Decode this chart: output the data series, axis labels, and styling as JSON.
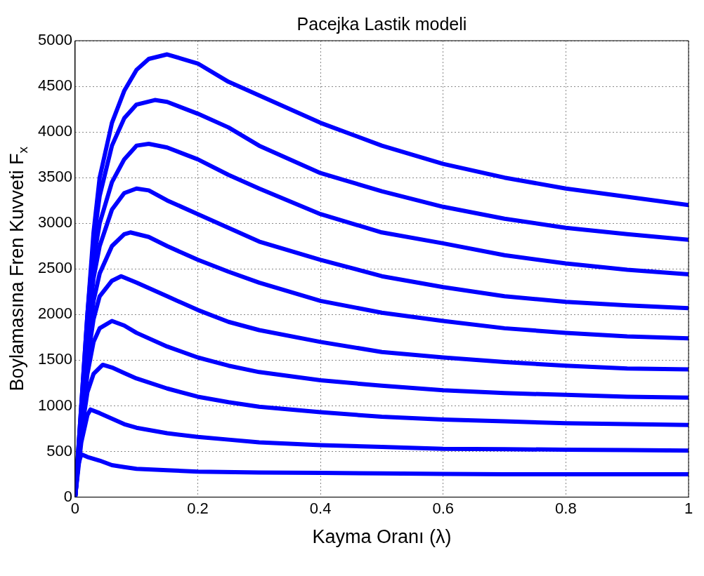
{
  "chart_data": {
    "type": "line",
    "title": "Pacejka Lastik modeli",
    "xlabel": "Kayma Oranı (λ)",
    "ylabel": "Boylamasına Fren Kuvveti F$_{x}$",
    "xlim": [
      0,
      1
    ],
    "ylim": [
      0,
      5000
    ],
    "xticks": [
      0,
      0.2,
      0.4,
      0.6,
      0.8,
      1
    ],
    "yticks": [
      0,
      500,
      1000,
      1500,
      2000,
      2500,
      3000,
      3500,
      4000,
      4500,
      5000
    ],
    "grid": true,
    "legend": false,
    "marker": "none",
    "line_style": "solid",
    "series": [
      {
        "color": "#0000ff",
        "x": [
          0,
          0.005,
          0.01,
          0.02,
          0.04,
          0.06,
          0.08,
          0.1,
          0.15,
          0.2,
          0.3,
          0.4,
          0.5,
          0.6,
          0.7,
          0.8,
          1
        ],
        "values": [
          0,
          350,
          470,
          440,
          400,
          350,
          330,
          310,
          295,
          280,
          270,
          265,
          260,
          255,
          250,
          250,
          250
        ]
      },
      {
        "color": "#0000ff",
        "x": [
          0,
          0.01,
          0.02,
          0.025,
          0.04,
          0.06,
          0.08,
          0.1,
          0.15,
          0.2,
          0.25,
          0.3,
          0.4,
          0.5,
          0.6,
          0.7,
          0.8,
          0.9,
          1
        ],
        "values": [
          0,
          600,
          900,
          960,
          920,
          860,
          800,
          760,
          700,
          660,
          630,
          600,
          570,
          550,
          530,
          525,
          520,
          515,
          510
        ]
      },
      {
        "color": "#0000ff",
        "x": [
          0,
          0.01,
          0.02,
          0.03,
          0.045,
          0.06,
          0.08,
          0.1,
          0.15,
          0.2,
          0.25,
          0.3,
          0.4,
          0.5,
          0.6,
          0.7,
          0.8,
          0.9,
          1
        ],
        "values": [
          0,
          700,
          1150,
          1350,
          1450,
          1420,
          1360,
          1300,
          1190,
          1100,
          1040,
          990,
          930,
          880,
          850,
          830,
          810,
          800,
          790
        ]
      },
      {
        "color": "#0000ff",
        "x": [
          0,
          0.01,
          0.02,
          0.03,
          0.04,
          0.06,
          0.08,
          0.1,
          0.15,
          0.2,
          0.25,
          0.3,
          0.4,
          0.5,
          0.6,
          0.7,
          0.8,
          0.9,
          1
        ],
        "values": [
          0,
          750,
          1350,
          1700,
          1850,
          1930,
          1880,
          1800,
          1650,
          1530,
          1440,
          1370,
          1280,
          1220,
          1170,
          1140,
          1120,
          1100,
          1090
        ]
      },
      {
        "color": "#0000ff",
        "x": [
          0,
          0.01,
          0.02,
          0.03,
          0.04,
          0.06,
          0.075,
          0.1,
          0.15,
          0.2,
          0.25,
          0.3,
          0.4,
          0.5,
          0.6,
          0.7,
          0.8,
          0.9,
          1
        ],
        "values": [
          0,
          800,
          1500,
          1950,
          2200,
          2370,
          2420,
          2350,
          2200,
          2050,
          1920,
          1830,
          1700,
          1590,
          1530,
          1480,
          1440,
          1410,
          1400
        ]
      },
      {
        "color": "#0000ff",
        "x": [
          0,
          0.01,
          0.02,
          0.03,
          0.04,
          0.06,
          0.08,
          0.09,
          0.12,
          0.15,
          0.2,
          0.25,
          0.3,
          0.4,
          0.5,
          0.6,
          0.7,
          0.8,
          0.9,
          1
        ],
        "values": [
          0,
          850,
          1650,
          2150,
          2450,
          2750,
          2880,
          2900,
          2850,
          2750,
          2600,
          2470,
          2350,
          2150,
          2020,
          1930,
          1850,
          1800,
          1760,
          1740
        ]
      },
      {
        "color": "#0000ff",
        "x": [
          0,
          0.01,
          0.02,
          0.03,
          0.04,
          0.06,
          0.08,
          0.1,
          0.12,
          0.15,
          0.2,
          0.25,
          0.3,
          0.4,
          0.5,
          0.6,
          0.7,
          0.8,
          0.9,
          1
        ],
        "values": [
          0,
          900,
          1800,
          2400,
          2750,
          3150,
          3330,
          3380,
          3360,
          3250,
          3100,
          2950,
          2800,
          2600,
          2420,
          2300,
          2200,
          2140,
          2100,
          2070
        ]
      },
      {
        "color": "#0000ff",
        "x": [
          0,
          0.01,
          0.02,
          0.03,
          0.04,
          0.06,
          0.08,
          0.1,
          0.12,
          0.15,
          0.2,
          0.25,
          0.3,
          0.4,
          0.5,
          0.6,
          0.7,
          0.8,
          0.9,
          1
        ],
        "values": [
          0,
          950,
          1900,
          2600,
          3000,
          3450,
          3700,
          3850,
          3870,
          3830,
          3700,
          3530,
          3380,
          3100,
          2900,
          2780,
          2650,
          2560,
          2490,
          2440
        ]
      },
      {
        "color": "#0000ff",
        "x": [
          0,
          0.01,
          0.02,
          0.03,
          0.04,
          0.06,
          0.08,
          0.1,
          0.13,
          0.15,
          0.2,
          0.25,
          0.3,
          0.4,
          0.5,
          0.6,
          0.7,
          0.8,
          0.9,
          1
        ],
        "values": [
          0,
          1000,
          2000,
          2800,
          3300,
          3850,
          4150,
          4300,
          4350,
          4330,
          4200,
          4050,
          3850,
          3550,
          3350,
          3180,
          3050,
          2950,
          2880,
          2820
        ]
      },
      {
        "color": "#0000ff",
        "x": [
          0,
          0.01,
          0.02,
          0.03,
          0.04,
          0.06,
          0.08,
          0.1,
          0.12,
          0.15,
          0.2,
          0.25,
          0.3,
          0.4,
          0.5,
          0.6,
          0.7,
          0.8,
          0.9,
          1
        ],
        "values": [
          0,
          1000,
          2000,
          2900,
          3500,
          4100,
          4450,
          4680,
          4800,
          4850,
          4750,
          4550,
          4400,
          4100,
          3850,
          3650,
          3500,
          3380,
          3290,
          3200
        ]
      }
    ]
  }
}
